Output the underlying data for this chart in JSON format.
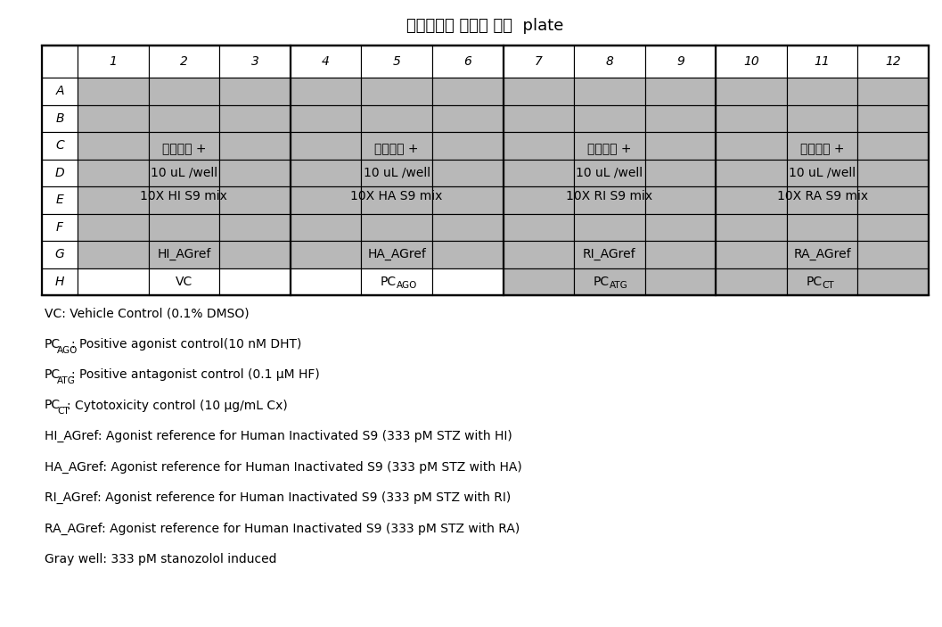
{
  "title": "시험물질을 첨가한 분석  plate",
  "col_labels": [
    "1",
    "2",
    "3",
    "4",
    "5",
    "6",
    "7",
    "8",
    "9",
    "10",
    "11",
    "12"
  ],
  "row_labels": [
    "A",
    "B",
    "C",
    "D",
    "E",
    "F",
    "G",
    "H"
  ],
  "gray_color": "#b8b8b8",
  "white_color": "#ffffff",
  "border_color": "#000000",
  "bg_color": "#ffffff",
  "merged_bf": [
    {
      "cols": [
        1,
        3
      ],
      "text": "시험물질 +\n10 uL /well\n10X HI S9 mix"
    },
    {
      "cols": [
        4,
        6
      ],
      "text": "시험물질 +\n10 uL /well\n10X HA S9 mix"
    },
    {
      "cols": [
        7,
        9
      ],
      "text": "시험물질 +\n10 uL /well\n10X RI S9 mix"
    },
    {
      "cols": [
        10,
        12
      ],
      "text": "시험물질 +\n10 uL /well\n10X RA S9 mix"
    }
  ],
  "row_g": [
    {
      "cols": [
        1,
        3
      ],
      "text": "HI_AGref"
    },
    {
      "cols": [
        4,
        6
      ],
      "text": "HA_AGref"
    },
    {
      "cols": [
        7,
        9
      ],
      "text": "RI_AGref"
    },
    {
      "cols": [
        10,
        12
      ],
      "text": "RA_AGref"
    }
  ],
  "row_h_white": [
    {
      "cols": [
        1,
        3
      ],
      "text": "VC",
      "sub": ""
    },
    {
      "cols": [
        4,
        6
      ],
      "text": "PC",
      "sub": "AGO"
    }
  ],
  "row_h_gray": [
    {
      "cols": [
        7,
        9
      ],
      "text": "PC",
      "sub": "ATG"
    },
    {
      "cols": [
        10,
        12
      ],
      "text": "PC",
      "sub": "CT"
    }
  ],
  "legend_lines": [
    {
      "prefix": "VC",
      "sub": "",
      "rest": ": Vehicle Control (0.1% DMSO)"
    },
    {
      "prefix": "PC",
      "sub": "AGO",
      "rest": ": Positive agonist control(10 nM DHT)"
    },
    {
      "prefix": "PC",
      "sub": "ATG",
      "rest": ": Positive antagonist control (0.1 μM HF)"
    },
    {
      "prefix": "PC",
      "sub": "CT",
      "rest": ": Cytotoxicity control (10 μg/mL Cx)"
    },
    {
      "prefix": "HI_AGref",
      "sub": "",
      "rest": ": Agonist reference for Human Inactivated S9 (333 pM STZ with HI)"
    },
    {
      "prefix": "HA_AGref",
      "sub": "",
      "rest": ": Agonist reference for Human Inactivated S9 (333 pM STZ with HA)"
    },
    {
      "prefix": "RI_AGref",
      "sub": "",
      "rest": ": Agonist reference for Human Inactivated S9 (333 pM STZ with RI)"
    },
    {
      "prefix": "RA_AGref",
      "sub": "",
      "rest": ": Agonist reference for Human Inactivated S9 (333 pM STZ with RA)"
    },
    {
      "prefix": "Gray well",
      "sub": "",
      "rest": ": 333 pM stanozolol induced"
    }
  ]
}
